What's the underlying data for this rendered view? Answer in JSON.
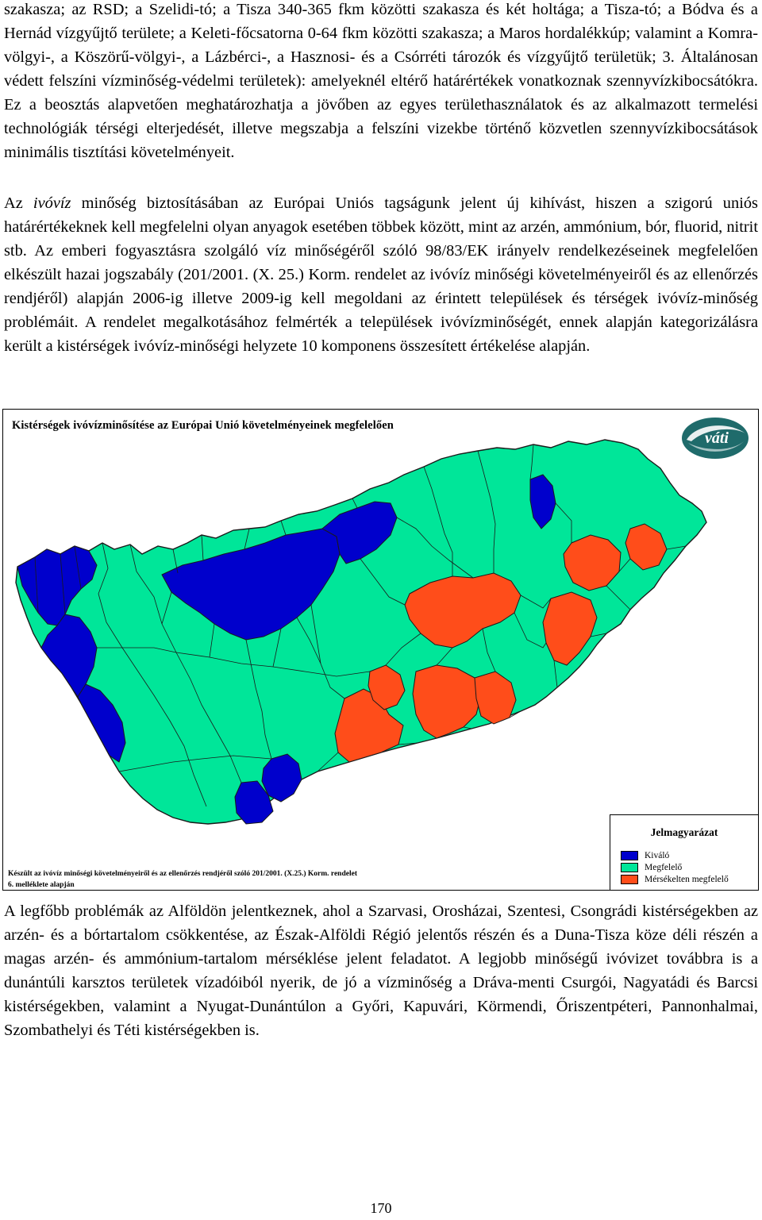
{
  "paragraph1": {
    "text": "szakasza; az RSD; a Szelidi-tó; a Tisza 340-365 fkm közötti szakasza és két holtága; a Tisza-tó; a Bódva és a Hernád vízgyűjtő területe; a Keleti-főcsatorna 0-64 fkm közötti szakasza; a Maros hordalékkúp; valamint a Komra-völgyi-, a Köszörű-völgyi-, a Lázbérci-, a Hasznosi- és a Csórréti tározók és vízgyűjtő területük; 3. Általánosan védett felszíni vízminőség-védelmi területek): amelyeknél eltérő határértékek vonatkoznak szennyvízkibocsátókra. Ez a beosztás alapvetően meghatározhatja a jövőben az egyes területhasználatok és az alkalmazott termelési technológiák térségi elterjedését, illetve megszabja a felszíni vizekbe történő közvetlen szennyvízkibocsátások minimális tisztítási követelményeit."
  },
  "paragraph2": {
    "before": "Az ",
    "emph": "ivóvíz",
    "after": " minőség biztosításában az Európai Uniós tagságunk jelent új kihívást, hiszen a szigorú uniós határértékeknek kell megfelelni olyan anyagok esetében többek között, mint az arzén, ammónium, bór, fluorid, nitrit stb. Az emberi fogyasztásra szolgáló víz minőségéről szóló 98/83/EK irányelv rendelkezéseinek megfelelően elkészült hazai jogszabály (201/2001. (X. 25.) Korm. rendelet az ivóvíz minőségi követelményeiről és az ellenőrzés rendjéről) alapján 2006-ig illetve 2009-ig kell megoldani az érintett települések és térségek ivóvíz-minőség problémáit. A rendelet megalkotásához felmérték a települések ivóvízminőségét, ennek alapján kategorizálásra került a kistérségek ivóvíz-minőségi helyzete 10 komponens összesített értékelése alapján."
  },
  "map": {
    "title": "Kistérségek ivóvízminősítése az Európai Unió követelményeinek megfelelően",
    "logo_text": "váti",
    "source_note": "Készült az ivóvíz minőségi követelményeiről és az ellenőrzés rendjéről szóló 201/2001. (X.25.) Korm. rendelet 6. melléklete alapján",
    "legend": {
      "title": "Jelmagyarázat",
      "items": [
        {
          "label": "Kiváló",
          "color": "#0000cc"
        },
        {
          "label": "Megfelelő",
          "color": "#00e699"
        },
        {
          "label": "Mérsékelten megfelelő",
          "color": "#ff4d1a"
        }
      ]
    },
    "colors": {
      "excellent": "#0000cc",
      "adequate": "#00e699",
      "moderate": "#ff4d1a",
      "border": "#1a1a1a"
    }
  },
  "paragraph3": {
    "text": "A legfőbb problémák az Alföldön jelentkeznek, ahol a Szarvasi, Orosházai, Szentesi, Csongrádi kistérségekben az arzén- és a bórtartalom csökkentése, az Észak-Alföldi Régió jelentős részén és a Duna-Tisza köze déli részén a magas arzén- és ammónium-tartalom mérséklése jelent feladatot. A legjobb minőségű ivóvizet továbbra is a dunántúli karsztos területek vízadóiból nyerik, de jó a vízminőség a Dráva-menti Csurgói, Nagyatádi és Barcsi kistérségekben, valamint a Nyugat-Dunántúlon a Győri, Kapuvári, Körmendi, Őriszentpéteri, Pannonhalmai, Szombathelyi és Téti kistérségekben is."
  },
  "page_number": "170"
}
